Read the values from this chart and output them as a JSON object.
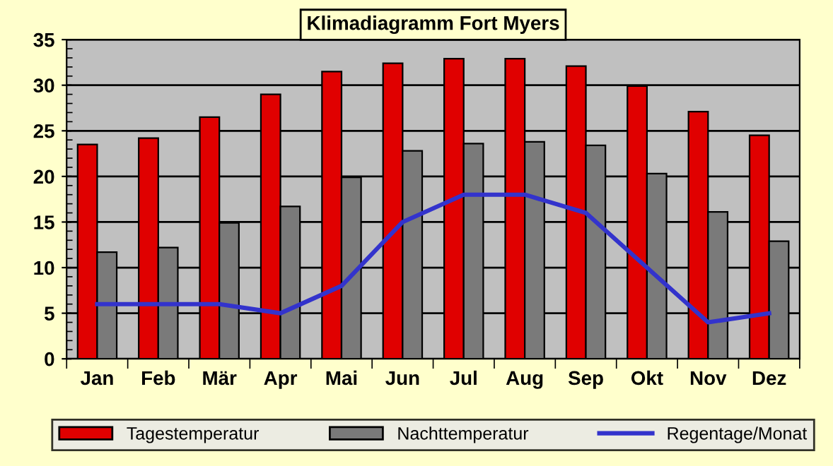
{
  "chart_data": {
    "type": "bar",
    "title": "Klimadiagramm Fort Myers",
    "categories": [
      "Jan",
      "Feb",
      "Mär",
      "Apr",
      "Mai",
      "Jun",
      "Jul",
      "Aug",
      "Sep",
      "Okt",
      "Nov",
      "Dez"
    ],
    "series": [
      {
        "name": "Tagestemperatur",
        "color": "#e00000",
        "values": [
          23.5,
          24.2,
          26.5,
          29,
          31.5,
          32.4,
          32.9,
          32.9,
          32.1,
          29.9,
          27.1,
          24.5
        ]
      },
      {
        "name": "Nachttemperatur",
        "color": "#7a7a7a",
        "values": [
          11.7,
          12.2,
          14.9,
          16.7,
          19.9,
          22.8,
          23.6,
          23.8,
          23.4,
          20.3,
          16.1,
          12.9
        ]
      },
      {
        "name": "Regentage/Monat",
        "type": "line",
        "color": "#3333cc",
        "values": [
          6,
          6,
          6,
          5,
          8,
          15,
          18,
          18,
          16,
          10,
          4,
          5
        ]
      }
    ],
    "ylim": [
      0,
      35
    ],
    "yticks": [
      0,
      5,
      10,
      15,
      20,
      25,
      30,
      35
    ],
    "grid": "y",
    "legend": "bottom",
    "marker": "none"
  }
}
